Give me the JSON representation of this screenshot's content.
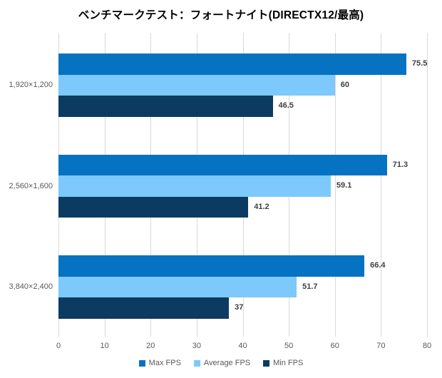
{
  "chart_data": {
    "type": "bar",
    "orientation": "horizontal",
    "title": "ベンチマークテスト：フォートナイト(DIRECTX12/最高)",
    "categories": [
      "1,920×1,200",
      "2,560×1,600",
      "3,840×2,400"
    ],
    "series": [
      {
        "name": "Max FPS",
        "color": "#0572C2",
        "values": [
          75.5,
          71.3,
          66.4
        ]
      },
      {
        "name": "Average FPS",
        "color": "#7DC9FB",
        "values": [
          60,
          59.1,
          51.7
        ]
      },
      {
        "name": "Min FPS",
        "color": "#0B3B61",
        "values": [
          46.5,
          41.2,
          37
        ]
      }
    ],
    "value_labels": [
      [
        "75.5",
        "60",
        "46.5"
      ],
      [
        "71.3",
        "59.1",
        "41.2"
      ],
      [
        "66.4",
        "51.7",
        "37"
      ]
    ],
    "xlim": [
      0,
      80
    ],
    "x_ticks": [
      0,
      10,
      20,
      30,
      40,
      50,
      60,
      70,
      80
    ],
    "grid": true,
    "legend_position": "bottom",
    "colors": {
      "background": "#FFFFFF",
      "gridline": "#D9D9D9",
      "title": "#000000",
      "category_label": "#595959",
      "tick_label": "#595959",
      "value_label": "#404040",
      "legend_label": "#595959"
    }
  }
}
